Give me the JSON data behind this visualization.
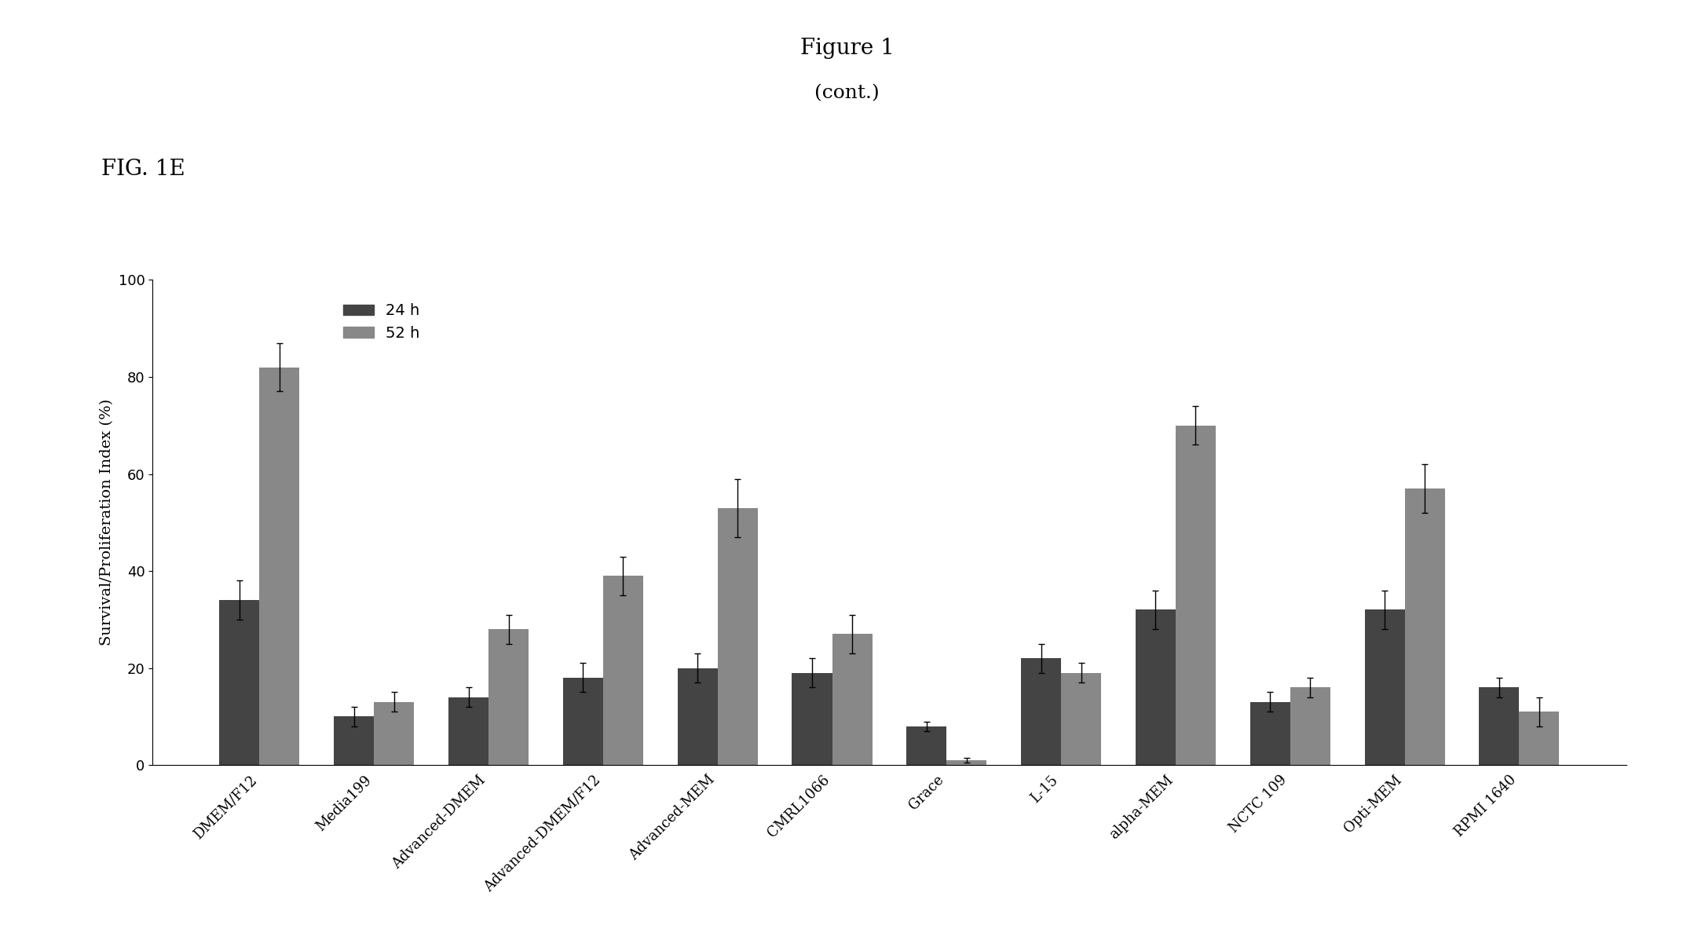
{
  "title": "Figure 1",
  "subtitle": "(cont.)",
  "fig_label": "FIG. 1E",
  "ylabel": "Survival/Proliferation Index (%)",
  "categories": [
    "DMEM/F12",
    "Media199",
    "Advanced-DMEM",
    "Advanced-DMEM/F12",
    "Advanced-MEM",
    "CMRL1066",
    "Grace",
    "L-15",
    "alpha-MEM",
    "NCTC 109",
    "Opti-MEM",
    "RPMI 1640"
  ],
  "values_24h": [
    34,
    10,
    14,
    18,
    20,
    19,
    8,
    22,
    32,
    13,
    32,
    16
  ],
  "values_52h": [
    82,
    13,
    28,
    39,
    53,
    27,
    1,
    19,
    70,
    16,
    57,
    11
  ],
  "err_24h": [
    4,
    2,
    2,
    3,
    3,
    3,
    1,
    3,
    4,
    2,
    4,
    2
  ],
  "err_52h": [
    5,
    2,
    3,
    4,
    6,
    4,
    0.5,
    2,
    4,
    2,
    5,
    3
  ],
  "color_24h": "#444444",
  "color_52h": "#888888",
  "ylim": [
    0,
    100
  ],
  "yticks": [
    0,
    20,
    40,
    60,
    80,
    100
  ],
  "bar_width": 0.35,
  "legend_labels": [
    "24 h",
    "52 h"
  ],
  "background_color": "#ffffff",
  "title_fontsize": 20,
  "label_fontsize": 14,
  "tick_fontsize": 13,
  "legend_fontsize": 14,
  "fig_width": 21.57,
  "fig_height": 11.88,
  "fig_dpi": 100
}
